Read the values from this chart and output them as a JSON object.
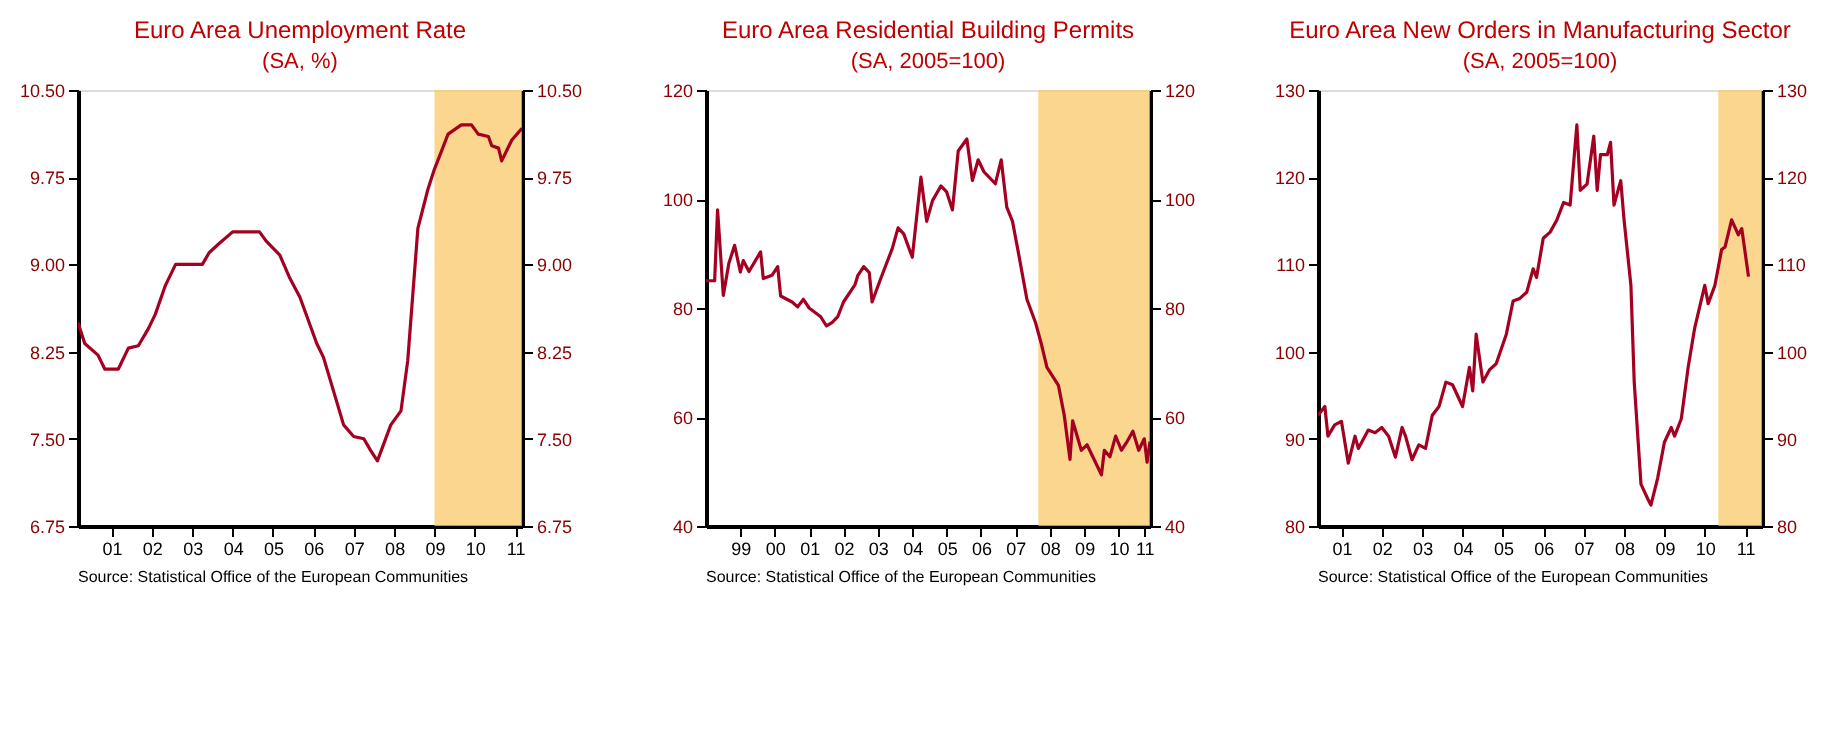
{
  "chart_data": [
    {
      "type": "line",
      "title": "Euro Area Unemployment Rate",
      "subtitle": "(SA, %)",
      "x": [
        "2000-09",
        "2000-11",
        "2001-03",
        "2001-05",
        "2001-09",
        "2001-12",
        "2002-03",
        "2002-06",
        "2002-08",
        "2002-11",
        "2003-02",
        "2003-10",
        "2003-12",
        "2004-03",
        "2004-07",
        "2005-03",
        "2005-05",
        "2005-09",
        "2005-12",
        "2006-03",
        "2006-08",
        "2006-10",
        "2007-04",
        "2007-07",
        "2007-10",
        "2007-12",
        "2008-02",
        "2008-06",
        "2008-09",
        "2008-11",
        "2009-02",
        "2009-05",
        "2009-07",
        "2009-09",
        "2009-11",
        "2010-03",
        "2010-06",
        "2010-08",
        "2010-11",
        "2010-12",
        "2011-02",
        "2011-03",
        "2011-06",
        "2011-09"
      ],
      "series": [
        {
          "color": "#a50021",
          "values": [
            8.5,
            8.32,
            8.22,
            8.1,
            8.1,
            8.28,
            8.3,
            8.45,
            8.57,
            8.82,
            9.0,
            9.0,
            9.1,
            9.18,
            9.28,
            9.28,
            9.2,
            9.08,
            8.88,
            8.72,
            8.32,
            8.2,
            7.62,
            7.52,
            7.5,
            7.4,
            7.31,
            7.62,
            7.74,
            8.17,
            9.31,
            9.64,
            9.82,
            9.97,
            10.12,
            10.2,
            10.2,
            10.12,
            10.1,
            10.02,
            10.0,
            9.89,
            10.07,
            10.17
          ]
        }
      ],
      "xlim": [
        "2000-09",
        "2011-09"
      ],
      "xticks": [
        {
          "value": "2001-07",
          "label": "01"
        },
        {
          "value": "2002-07",
          "label": "02"
        },
        {
          "value": "2003-07",
          "label": "03"
        },
        {
          "value": "2004-07",
          "label": "04"
        },
        {
          "value": "2005-07",
          "label": "05"
        },
        {
          "value": "2006-07",
          "label": "06"
        },
        {
          "value": "2007-07",
          "label": "07"
        },
        {
          "value": "2008-07",
          "label": "08"
        },
        {
          "value": "2009-07",
          "label": "09"
        },
        {
          "value": "2010-07",
          "label": "10"
        },
        {
          "value": "2011-07",
          "label": "11"
        }
      ],
      "ylim": [
        6.75,
        10.5
      ],
      "yticks": [
        {
          "value": 6.75,
          "label": "6.75"
        },
        {
          "value": 7.5,
          "label": "7.50"
        },
        {
          "value": 8.25,
          "label": "8.25"
        },
        {
          "value": 9.0,
          "label": "9.00"
        },
        {
          "value": 9.75,
          "label": "9.75"
        },
        {
          "value": 10.5,
          "label": "10.50"
        }
      ],
      "y2lim": [
        6.75,
        10.5
      ],
      "y2ticks": [
        {
          "value": 6.75,
          "label": "6.75"
        },
        {
          "value": 7.5,
          "label": "7.50"
        },
        {
          "value": 8.25,
          "label": "8.25"
        },
        {
          "value": 9.0,
          "label": "9.00"
        },
        {
          "value": 9.75,
          "label": "9.75"
        },
        {
          "value": 10.5,
          "label": "10.50"
        }
      ],
      "bands": [
        {
          "axis": "x",
          "from": "2009-07",
          "to": "2011-09",
          "label": null,
          "color": "#f9c86a"
        }
      ],
      "annotations": [
        "Source: Statistical Office of the European Communities"
      ]
    },
    {
      "type": "line",
      "title": "Euro Area Residential Building Permits",
      "subtitle": "(SA, 2005=100)",
      "x": [
        "1998-07",
        "1998-10",
        "1998-11",
        "1999-01",
        "1999-03",
        "1999-05",
        "1999-07",
        "1999-08",
        "1999-10",
        "2000-02",
        "2000-03",
        "2000-06",
        "2000-08",
        "2000-09",
        "2001-01",
        "2001-03",
        "2001-05",
        "2001-07",
        "2001-11",
        "2002-01",
        "2002-03",
        "2002-05",
        "2002-07",
        "2002-11",
        "2002-12",
        "2003-02",
        "2003-04",
        "2003-05",
        "2003-08",
        "2003-12",
        "2004-02",
        "2004-04",
        "2004-07",
        "2004-10",
        "2004-12",
        "2005-02",
        "2005-05",
        "2005-07",
        "2005-09",
        "2005-11",
        "2006-02",
        "2006-04",
        "2006-06",
        "2006-08",
        "2006-12",
        "2007-02",
        "2007-04",
        "2007-06",
        "2007-08",
        "2007-11",
        "2008-02",
        "2008-04",
        "2008-06",
        "2008-10",
        "2008-12",
        "2009-02",
        "2009-03",
        "2009-06",
        "2009-08",
        "2009-10",
        "2010-01",
        "2010-02",
        "2010-04",
        "2010-06",
        "2010-08",
        "2010-10",
        "2010-12",
        "2011-02",
        "2011-04",
        "2011-05",
        "2011-06"
      ],
      "series": [
        {
          "color": "#a50021",
          "values": [
            85,
            85,
            98,
            82.3,
            88.2,
            91.5,
            86.6,
            88.7,
            86.7,
            90.3,
            85.4,
            86,
            87.6,
            82.2,
            81.1,
            80.2,
            81.6,
            80,
            78.4,
            76.7,
            77.3,
            78.4,
            81.1,
            84.3,
            86,
            87.6,
            86.5,
            81.1,
            85.4,
            90.9,
            94.7,
            93.6,
            89.3,
            104,
            95.9,
            99.7,
            102.4,
            101.3,
            98,
            108.8,
            111,
            103.4,
            107.2,
            105,
            102.8,
            107.2,
            98.5,
            95.9,
            90.3,
            81.6,
            77.3,
            73.5,
            69.1,
            65.8,
            60.4,
            52.2,
            59.3,
            53.9,
            54.9,
            52.7,
            49.4,
            53.9,
            52.7,
            56.5,
            53.9,
            55.5,
            57.4,
            53.9,
            56,
            51.7,
            55.5
          ]
        }
      ],
      "xlim": [
        "1998-07",
        "2011-06"
      ],
      "xticks": [
        {
          "value": "1999-07",
          "label": "99"
        },
        {
          "value": "2000-07",
          "label": "00"
        },
        {
          "value": "2001-07",
          "label": "01"
        },
        {
          "value": "2002-07",
          "label": "02"
        },
        {
          "value": "2003-07",
          "label": "03"
        },
        {
          "value": "2004-07",
          "label": "04"
        },
        {
          "value": "2005-07",
          "label": "05"
        },
        {
          "value": "2006-07",
          "label": "06"
        },
        {
          "value": "2007-07",
          "label": "07"
        },
        {
          "value": "2008-07",
          "label": "08"
        },
        {
          "value": "2009-07",
          "label": "09"
        },
        {
          "value": "2010-07",
          "label": "10"
        },
        {
          "value": "2011-04",
          "label": "11"
        }
      ],
      "ylim": [
        40,
        120
      ],
      "yticks": [
        40,
        60,
        80,
        100,
        120
      ],
      "y2lim": [
        40,
        120
      ],
      "y2ticks": [
        40,
        60,
        80,
        100,
        120
      ],
      "bands": [
        {
          "axis": "x",
          "from": "2008-03",
          "to": "2011-06",
          "label": null,
          "color": "#f9c86a"
        }
      ],
      "annotations": [
        "Source: Statistical Office of the European Communities"
      ]
    },
    {
      "type": "line",
      "title": "Euro Area New Orders in Manufacturing Sector",
      "subtitle": "(SA, 2005=100)",
      "x": [
        "2000-12",
        "2001-02",
        "2001-03",
        "2001-05",
        "2001-07",
        "2001-09",
        "2001-11",
        "2001-12",
        "2002-03",
        "2002-05",
        "2002-07",
        "2002-09",
        "2002-11",
        "2003-01",
        "2003-02",
        "2003-04",
        "2003-06",
        "2003-08",
        "2003-10",
        "2003-12",
        "2004-02",
        "2004-04",
        "2004-07",
        "2004-09",
        "2004-10",
        "2004-11",
        "2005-01",
        "2005-03",
        "2005-05",
        "2005-08",
        "2005-10",
        "2005-12",
        "2006-02",
        "2006-04",
        "2006-05",
        "2006-07",
        "2006-09",
        "2006-11",
        "2007-01",
        "2007-03",
        "2007-05",
        "2007-06",
        "2007-08",
        "2007-10",
        "2007-11",
        "2007-12",
        "2008-02",
        "2008-03",
        "2008-04",
        "2008-06",
        "2008-07",
        "2008-09",
        "2008-10",
        "2008-12",
        "2009-02",
        "2009-03",
        "2009-05",
        "2009-07",
        "2009-09",
        "2009-10",
        "2009-12",
        "2010-02",
        "2010-04",
        "2010-07",
        "2010-08",
        "2010-10",
        "2010-12",
        "2011-01",
        "2011-03",
        "2011-05",
        "2011-06",
        "2011-08"
      ],
      "series": [
        {
          "color": "#a50021",
          "values": [
            92.7,
            93.7,
            90.3,
            91.6,
            92,
            87.2,
            90.3,
            88.9,
            91,
            90.7,
            91.3,
            90.3,
            87.9,
            91.3,
            90.3,
            87.6,
            89.3,
            88.9,
            92.7,
            93.7,
            96.5,
            96.2,
            93.7,
            98.2,
            95.5,
            102,
            96.5,
            97.9,
            98.6,
            102,
            105.8,
            106.1,
            106.8,
            109.5,
            108.5,
            113,
            113.7,
            115.1,
            117.1,
            116.8,
            126,
            118.5,
            119.2,
            124.7,
            118.5,
            122.6,
            122.6,
            124,
            116.8,
            119.6,
            115.1,
            107.6,
            96.5,
            84.8,
            83.1,
            82.4,
            85.5,
            89.6,
            91.3,
            90.3,
            92.3,
            98.2,
            102.7,
            107.6,
            105.5,
            107.6,
            111.7,
            112,
            115.1,
            113.4,
            114.1,
            108.6
          ]
        }
      ],
      "xlim": [
        "2000-12",
        "2011-12"
      ],
      "xticks": [
        {
          "value": "2001-07",
          "label": "01"
        },
        {
          "value": "2002-07",
          "label": "02"
        },
        {
          "value": "2003-07",
          "label": "03"
        },
        {
          "value": "2004-07",
          "label": "04"
        },
        {
          "value": "2005-07",
          "label": "05"
        },
        {
          "value": "2006-07",
          "label": "06"
        },
        {
          "value": "2007-07",
          "label": "07"
        },
        {
          "value": "2008-07",
          "label": "08"
        },
        {
          "value": "2009-07",
          "label": "09"
        },
        {
          "value": "2010-07",
          "label": "10"
        },
        {
          "value": "2011-07",
          "label": "11"
        }
      ],
      "ylim": [
        80,
        130
      ],
      "yticks": [
        80,
        90,
        100,
        110,
        120,
        130
      ],
      "y2lim": [
        80,
        130
      ],
      "y2ticks": [
        80,
        90,
        100,
        110,
        120,
        130
      ],
      "bands": [
        {
          "axis": "x",
          "from": "2010-11",
          "to": "2011-12",
          "label": null,
          "color": "#f9c86a"
        }
      ],
      "annotations": [
        "Source: Statistical Office of the European Communities"
      ]
    }
  ]
}
